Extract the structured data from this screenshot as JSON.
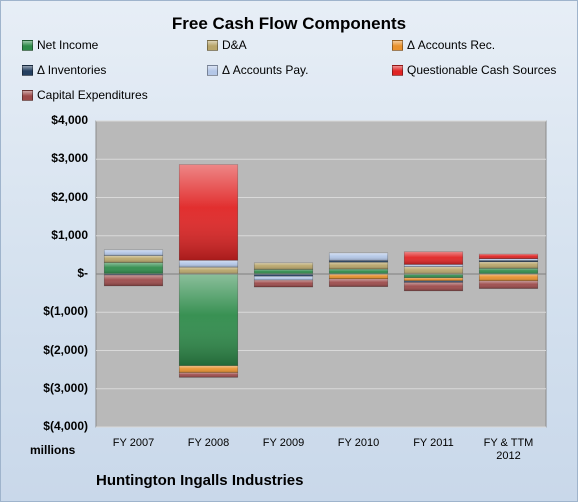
{
  "chart_data": {
    "type": "bar",
    "stacked": true,
    "title": "Free Cash Flow Components",
    "units_label": "millions",
    "company": "Huntington Ingalls Industries",
    "categories": [
      "FY 2007",
      "FY 2008",
      "FY 2009",
      "FY 2010",
      "FY 2011",
      "FY & TTM 2012"
    ],
    "ylim": [
      -4000,
      4000
    ],
    "yticks": [
      4000,
      3000,
      2000,
      1000,
      0,
      -1000,
      -2000,
      -3000,
      -4000
    ],
    "ytick_labels": [
      "$4,000",
      "$3,000",
      "$2,000",
      "$1,000",
      "$-",
      "$(1,000)",
      "$(2,000)",
      "$(3,000)",
      "$(4,000)"
    ],
    "grid": true,
    "legend_placement": "top",
    "series": [
      {
        "name": "Net Income",
        "color": "#2e8b4a",
        "values": [
          300,
          -2400,
          120,
          130,
          -100,
          150
        ]
      },
      {
        "name": "D&A",
        "color": "#b8a56a",
        "values": [
          180,
          180,
          170,
          180,
          190,
          170
        ]
      },
      {
        "name": "Δ Accounts Rec.",
        "color": "#e8912d",
        "values": [
          0,
          -180,
          0,
          -130,
          -80,
          -180
        ]
      },
      {
        "name": "Δ Inventories",
        "color": "#243f60",
        "values": [
          -30,
          0,
          -60,
          40,
          -40,
          30
        ]
      },
      {
        "name": "Δ Accounts Pay.",
        "color": "#b4c7e7",
        "values": [
          150,
          180,
          -100,
          200,
          60,
          50
        ]
      },
      {
        "name": "Questionable Cash Sources",
        "color": "#e02424",
        "values": [
          0,
          2500,
          0,
          0,
          330,
          120
        ]
      },
      {
        "name": "Capital Expenditures",
        "color": "#9c4a4a",
        "values": [
          -280,
          -120,
          -180,
          -200,
          -220,
          -200
        ]
      }
    ]
  }
}
